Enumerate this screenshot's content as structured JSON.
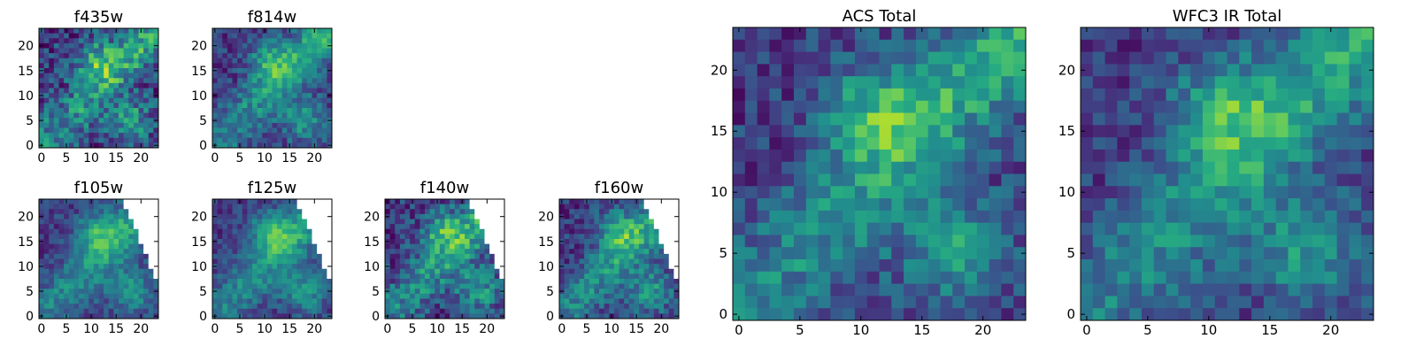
{
  "chart_data": [
    {
      "type": "heatmap",
      "title": "f435w",
      "grid": "24x24",
      "colormap": "viridis",
      "xlim": [
        0,
        24
      ],
      "ylim": [
        0,
        24
      ],
      "xticks": [
        "0",
        "5",
        "10",
        "15",
        "20"
      ],
      "yticks": [
        "0",
        "5",
        "10",
        "15",
        "20"
      ],
      "valid_region": "full",
      "noise": 0.28,
      "seed": 11
    },
    {
      "type": "heatmap",
      "title": "f814w",
      "grid": "24x24",
      "colormap": "viridis",
      "xlim": [
        0,
        24
      ],
      "ylim": [
        0,
        24
      ],
      "xticks": [
        "0",
        "5",
        "10",
        "15",
        "20"
      ],
      "yticks": [
        "0",
        "5",
        "10",
        "15",
        "20"
      ],
      "valid_region": "full",
      "noise": 0.2,
      "seed": 23
    },
    {
      "type": "heatmap",
      "title": "f105w",
      "grid": "24x24",
      "colormap": "viridis",
      "xlim": [
        0,
        24
      ],
      "ylim": [
        0,
        24
      ],
      "xticks": [
        "0",
        "5",
        "10",
        "15",
        "20"
      ],
      "yticks": [
        "0",
        "5",
        "10",
        "15",
        "20"
      ],
      "valid_region": "upper-right corner masked (white)",
      "noise": 0.16,
      "seed": 37
    },
    {
      "type": "heatmap",
      "title": "f125w",
      "grid": "24x24",
      "colormap": "viridis",
      "xlim": [
        0,
        24
      ],
      "ylim": [
        0,
        24
      ],
      "xticks": [
        "0",
        "5",
        "10",
        "15",
        "20"
      ],
      "yticks": [
        "0",
        "5",
        "10",
        "15",
        "20"
      ],
      "valid_region": "upper-right corner masked (white)",
      "noise": 0.16,
      "seed": 41
    },
    {
      "type": "heatmap",
      "title": "f140w",
      "grid": "24x24",
      "colormap": "viridis",
      "xlim": [
        0,
        24
      ],
      "ylim": [
        0,
        24
      ],
      "xticks": [
        "0",
        "5",
        "10",
        "15",
        "20"
      ],
      "yticks": [
        "0",
        "5",
        "10",
        "15",
        "20"
      ],
      "valid_region": "upper-right corner masked (white)",
      "noise": 0.24,
      "seed": 53
    },
    {
      "type": "heatmap",
      "title": "f160w",
      "grid": "24x24",
      "colormap": "viridis",
      "xlim": [
        0,
        24
      ],
      "ylim": [
        0,
        24
      ],
      "xticks": [
        "0",
        "5",
        "10",
        "15",
        "20"
      ],
      "yticks": [
        "0",
        "5",
        "10",
        "15",
        "20"
      ],
      "valid_region": "upper-right corner masked (white)",
      "noise": 0.2,
      "seed": 67
    },
    {
      "type": "heatmap",
      "title": "ACS Total",
      "grid": "24x24",
      "colormap": "viridis",
      "xlim": [
        0,
        24
      ],
      "ylim": [
        0,
        24
      ],
      "xticks": [
        "0",
        "5",
        "10",
        "15",
        "20"
      ],
      "yticks": [
        "0",
        "5",
        "10",
        "15",
        "20"
      ],
      "valid_region": "full",
      "noise": 0.2,
      "seed": 79
    },
    {
      "type": "heatmap",
      "title": "WFC3 IR Total",
      "grid": "24x24",
      "colormap": "viridis",
      "xlim": [
        0,
        24
      ],
      "ylim": [
        0,
        24
      ],
      "xticks": [
        "0",
        "5",
        "10",
        "15",
        "20"
      ],
      "yticks": [
        "0",
        "5",
        "10",
        "15",
        "20"
      ],
      "valid_region": "full",
      "noise": 0.18,
      "seed": 97
    }
  ]
}
